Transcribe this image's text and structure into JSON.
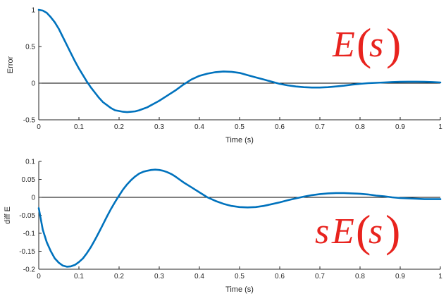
{
  "chart_data": [
    {
      "type": "line",
      "title": "",
      "xlabel": "Time (s)",
      "ylabel": "Error",
      "xlim": [
        0,
        1
      ],
      "ylim": [
        -0.5,
        1
      ],
      "xticks": [
        0,
        0.1,
        0.2,
        0.3,
        0.4,
        0.5,
        0.6,
        0.7,
        0.8,
        0.9,
        1
      ],
      "xtick_labels": [
        "0",
        "0.1",
        "0.2",
        "0.3",
        "0.4",
        "0.5",
        "0.6",
        "0.7",
        "0.8",
        "0.9",
        "1"
      ],
      "yticks": [
        -0.5,
        0,
        0.5,
        1
      ],
      "ytick_labels": [
        "-0.5",
        "0",
        "0.5",
        "1"
      ],
      "zero_line": true,
      "grid": false,
      "annotation": {
        "prefix": "",
        "E": "E",
        "paren_open": "(",
        "s": "s",
        "paren_close": ")"
      },
      "series": [
        {
          "color": "#0072BD",
          "x": [
            0,
            0.01,
            0.02,
            0.03,
            0.04,
            0.05,
            0.06,
            0.07,
            0.08,
            0.09,
            0.1,
            0.11,
            0.12,
            0.13,
            0.14,
            0.15,
            0.16,
            0.17,
            0.18,
            0.19,
            0.2,
            0.21,
            0.22,
            0.23,
            0.24,
            0.25,
            0.26,
            0.27,
            0.28,
            0.29,
            0.3,
            0.32,
            0.34,
            0.36,
            0.38,
            0.4,
            0.42,
            0.44,
            0.46,
            0.48,
            0.5,
            0.52,
            0.54,
            0.56,
            0.58,
            0.6,
            0.62,
            0.64,
            0.66,
            0.68,
            0.7,
            0.72,
            0.74,
            0.76,
            0.78,
            0.8,
            0.82,
            0.84,
            0.86,
            0.88,
            0.9,
            0.92,
            0.94,
            0.96,
            0.98,
            1.0
          ],
          "y": [
            1.0,
            0.99,
            0.96,
            0.9,
            0.83,
            0.74,
            0.63,
            0.52,
            0.41,
            0.3,
            0.2,
            0.11,
            0.02,
            -0.06,
            -0.13,
            -0.2,
            -0.26,
            -0.3,
            -0.34,
            -0.37,
            -0.38,
            -0.39,
            -0.395,
            -0.39,
            -0.385,
            -0.37,
            -0.35,
            -0.33,
            -0.3,
            -0.27,
            -0.24,
            -0.17,
            -0.1,
            -0.02,
            0.05,
            0.1,
            0.13,
            0.15,
            0.16,
            0.155,
            0.14,
            0.11,
            0.08,
            0.05,
            0.02,
            -0.01,
            -0.03,
            -0.045,
            -0.055,
            -0.06,
            -0.06,
            -0.055,
            -0.045,
            -0.035,
            -0.02,
            -0.01,
            0.0,
            0.005,
            0.01,
            0.015,
            0.018,
            0.02,
            0.02,
            0.018,
            0.015,
            0.01
          ]
        }
      ]
    },
    {
      "type": "line",
      "title": "",
      "xlabel": "Time (s)",
      "ylabel": "diff E",
      "xlim": [
        0,
        1
      ],
      "ylim": [
        -0.2,
        0.1
      ],
      "xticks": [
        0,
        0.1,
        0.2,
        0.3,
        0.4,
        0.5,
        0.6,
        0.7,
        0.8,
        0.9,
        1
      ],
      "xtick_labels": [
        "0",
        "0.1",
        "0.2",
        "0.3",
        "0.4",
        "0.5",
        "0.6",
        "0.7",
        "0.8",
        "0.9",
        "1"
      ],
      "yticks": [
        -0.2,
        -0.15,
        -0.1,
        -0.05,
        0,
        0.05,
        0.1
      ],
      "ytick_labels": [
        "-0.2",
        "-0.15",
        "-0.1",
        "-0.05",
        "0",
        "0.05",
        "0.1"
      ],
      "zero_line": true,
      "grid": false,
      "annotation": {
        "prefix": "s",
        "E": "E",
        "paren_open": "(",
        "s": "s",
        "paren_close": ")"
      },
      "series": [
        {
          "color": "#0072BD",
          "x": [
            0,
            0.01,
            0.02,
            0.03,
            0.04,
            0.05,
            0.06,
            0.07,
            0.08,
            0.09,
            0.1,
            0.11,
            0.12,
            0.13,
            0.14,
            0.15,
            0.16,
            0.17,
            0.18,
            0.19,
            0.2,
            0.21,
            0.22,
            0.23,
            0.24,
            0.25,
            0.26,
            0.27,
            0.28,
            0.29,
            0.3,
            0.31,
            0.32,
            0.33,
            0.34,
            0.35,
            0.36,
            0.38,
            0.4,
            0.42,
            0.44,
            0.46,
            0.48,
            0.5,
            0.52,
            0.54,
            0.56,
            0.58,
            0.6,
            0.62,
            0.64,
            0.66,
            0.68,
            0.7,
            0.72,
            0.74,
            0.76,
            0.78,
            0.8,
            0.82,
            0.84,
            0.86,
            0.88,
            0.9,
            0.92,
            0.94,
            0.96,
            0.98,
            1.0
          ],
          "y": [
            -0.03,
            -0.09,
            -0.125,
            -0.15,
            -0.17,
            -0.182,
            -0.19,
            -0.193,
            -0.192,
            -0.188,
            -0.18,
            -0.17,
            -0.155,
            -0.138,
            -0.118,
            -0.097,
            -0.075,
            -0.053,
            -0.032,
            -0.013,
            0.005,
            0.022,
            0.036,
            0.048,
            0.058,
            0.066,
            0.071,
            0.074,
            0.076,
            0.077,
            0.076,
            0.074,
            0.07,
            0.065,
            0.058,
            0.05,
            0.042,
            0.028,
            0.014,
            0.0,
            -0.01,
            -0.018,
            -0.024,
            -0.027,
            -0.028,
            -0.027,
            -0.024,
            -0.019,
            -0.014,
            -0.008,
            -0.003,
            0.002,
            0.006,
            0.009,
            0.011,
            0.012,
            0.012,
            0.011,
            0.01,
            0.008,
            0.005,
            0.003,
            0.0,
            -0.002,
            -0.003,
            -0.004,
            -0.005,
            -0.005,
            -0.005
          ]
        }
      ]
    }
  ]
}
